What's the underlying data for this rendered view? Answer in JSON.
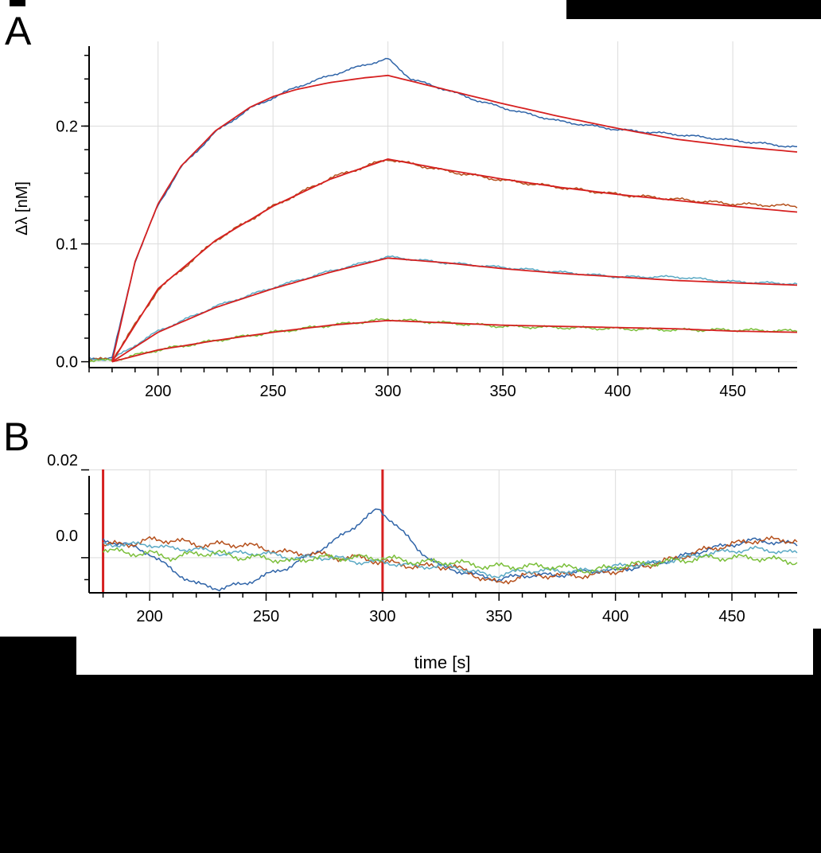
{
  "panels": {
    "a_letter": "A",
    "b_letter": "B"
  },
  "colors": {
    "fit": "#d62020",
    "dark_blue": "#2f64a8",
    "orange_brown": "#b5501c",
    "light_blue": "#5aa9c4",
    "green": "#7bbf3a",
    "grid": "#dcdcdc",
    "axis": "#000000"
  },
  "chart_data": [
    {
      "type": "line",
      "panel": "A",
      "xlabel": "",
      "ylabel": "Δλ [nM]",
      "xlim": [
        170,
        478
      ],
      "ylim": [
        -0.005,
        0.28
      ],
      "xticks": [
        200,
        250,
        300,
        350,
        400,
        450
      ],
      "xtick_labels": [
        "200",
        "250",
        "300",
        "350",
        "400",
        "450"
      ],
      "yticks": [
        0.0,
        0.1,
        0.2
      ],
      "ytick_labels": [
        "0.0",
        "0.1",
        "0.2"
      ],
      "grid": true,
      "association_start": 180,
      "dissociation_start": 300,
      "series": [
        {
          "color_key": "dark_blue",
          "kind": "data",
          "x": [
            170,
            180,
            190,
            200,
            210,
            225,
            240,
            250,
            260,
            275,
            290,
            300,
            310,
            325,
            340,
            355,
            375,
            400,
            425,
            450,
            478
          ],
          "y": [
            0.003,
            0.003,
            0.085,
            0.133,
            0.165,
            0.195,
            0.215,
            0.224,
            0.233,
            0.243,
            0.252,
            0.257,
            0.24,
            0.231,
            0.221,
            0.213,
            0.204,
            0.197,
            0.193,
            0.188,
            0.182
          ]
        },
        {
          "color_key": "orange_brown",
          "kind": "data",
          "x": [
            170,
            180,
            200,
            225,
            250,
            275,
            300,
            325,
            350,
            375,
            400,
            425,
            450,
            478
          ],
          "y": [
            0.002,
            0.002,
            0.061,
            0.103,
            0.132,
            0.156,
            0.172,
            0.162,
            0.154,
            0.148,
            0.142,
            0.138,
            0.134,
            0.132
          ]
        },
        {
          "color_key": "light_blue",
          "kind": "data",
          "x": [
            170,
            180,
            200,
            225,
            250,
            275,
            300,
            325,
            350,
            375,
            400,
            425,
            450,
            478
          ],
          "y": [
            0.002,
            0.002,
            0.026,
            0.047,
            0.063,
            0.077,
            0.089,
            0.084,
            0.08,
            0.076,
            0.072,
            0.072,
            0.068,
            0.066
          ]
        },
        {
          "color_key": "green",
          "kind": "data",
          "x": [
            170,
            180,
            200,
            225,
            250,
            275,
            300,
            325,
            350,
            375,
            400,
            425,
            450,
            478
          ],
          "y": [
            0.001,
            0.001,
            0.01,
            0.018,
            0.025,
            0.031,
            0.036,
            0.033,
            0.03,
            0.029,
            0.028,
            0.027,
            0.027,
            0.026
          ]
        },
        {
          "color_key": "fit",
          "kind": "fit",
          "x": [
            180,
            190,
            200,
            210,
            225,
            240,
            250,
            260,
            275,
            290,
            300,
            325,
            350,
            375,
            400,
            425,
            450,
            478
          ],
          "y": [
            0.0,
            0.085,
            0.134,
            0.166,
            0.196,
            0.216,
            0.225,
            0.231,
            0.237,
            0.241,
            0.243,
            0.231,
            0.219,
            0.208,
            0.198,
            0.189,
            0.183,
            0.178
          ]
        },
        {
          "color_key": "fit",
          "kind": "fit",
          "x": [
            180,
            200,
            225,
            250,
            275,
            300,
            325,
            350,
            375,
            400,
            425,
            450,
            478
          ],
          "y": [
            0.0,
            0.062,
            0.103,
            0.132,
            0.155,
            0.172,
            0.163,
            0.155,
            0.148,
            0.142,
            0.137,
            0.132,
            0.127
          ]
        },
        {
          "color_key": "fit",
          "kind": "fit",
          "x": [
            180,
            200,
            225,
            250,
            275,
            300,
            325,
            350,
            375,
            400,
            425,
            450,
            478
          ],
          "y": [
            0.0,
            0.025,
            0.046,
            0.062,
            0.076,
            0.088,
            0.084,
            0.079,
            0.075,
            0.072,
            0.069,
            0.067,
            0.065
          ]
        },
        {
          "color_key": "fit",
          "kind": "fit",
          "x": [
            180,
            200,
            225,
            250,
            275,
            300,
            325,
            350,
            375,
            400,
            425,
            450,
            478
          ],
          "y": [
            0.0,
            0.01,
            0.018,
            0.025,
            0.031,
            0.035,
            0.033,
            0.031,
            0.03,
            0.029,
            0.028,
            0.026,
            0.025
          ]
        }
      ]
    },
    {
      "type": "line",
      "panel": "B",
      "xlabel": "time [s]",
      "ylabel": "",
      "xlim": [
        174,
        478
      ],
      "ylim": [
        -0.008,
        0.021
      ],
      "xticks": [
        200,
        250,
        300,
        350,
        400,
        450
      ],
      "xtick_labels": [
        "200",
        "250",
        "300",
        "350",
        "400",
        "450"
      ],
      "yticks": [
        0.02,
        0.0
      ],
      "ytick_labels": [
        "0.02",
        "0.0"
      ],
      "grid": true,
      "markers_x": [
        180,
        300
      ],
      "series": [
        {
          "color_key": "dark_blue",
          "x": [
            180,
            190,
            200,
            210,
            220,
            230,
            240,
            250,
            260,
            270,
            280,
            290,
            298,
            305,
            315,
            325,
            340,
            350,
            360,
            375,
            390,
            400,
            420,
            440,
            460,
            478
          ],
          "y": [
            0.004,
            0.003,
            0.001,
            -0.003,
            -0.006,
            -0.007,
            -0.006,
            -0.004,
            -0.002,
            0.001,
            0.004,
            0.008,
            0.011,
            0.008,
            0.002,
            -0.002,
            -0.004,
            -0.005,
            -0.004,
            -0.004,
            -0.003,
            -0.003,
            -0.001,
            0.002,
            0.004,
            0.003
          ]
        },
        {
          "color_key": "orange_brown",
          "x": [
            180,
            190,
            200,
            210,
            220,
            230,
            240,
            250,
            260,
            270,
            280,
            290,
            300,
            315,
            330,
            345,
            350,
            360,
            375,
            390,
            400,
            420,
            440,
            460,
            478
          ],
          "y": [
            0.003,
            0.003,
            0.004,
            0.004,
            0.003,
            0.003,
            0.003,
            0.002,
            0.001,
            0.001,
            0.0,
            0.0,
            -0.001,
            -0.002,
            -0.002,
            -0.005,
            -0.006,
            -0.004,
            -0.004,
            -0.004,
            -0.003,
            -0.001,
            0.002,
            0.004,
            0.004
          ]
        },
        {
          "color_key": "light_blue",
          "x": [
            180,
            190,
            200,
            210,
            220,
            230,
            240,
            250,
            260,
            270,
            280,
            290,
            300,
            315,
            330,
            345,
            350,
            360,
            375,
            390,
            400,
            420,
            440,
            460,
            478
          ],
          "y": [
            0.003,
            0.003,
            0.003,
            0.002,
            0.002,
            0.001,
            0.001,
            0.001,
            0.0,
            0.0,
            0.0,
            -0.001,
            -0.001,
            -0.002,
            -0.002,
            -0.004,
            -0.004,
            -0.003,
            -0.003,
            -0.003,
            -0.002,
            -0.001,
            0.001,
            0.002,
            0.001
          ]
        },
        {
          "color_key": "green",
          "x": [
            180,
            190,
            200,
            210,
            220,
            230,
            240,
            250,
            260,
            270,
            280,
            290,
            300,
            315,
            330,
            345,
            350,
            360,
            375,
            390,
            400,
            420,
            440,
            460,
            478
          ],
          "y": [
            0.002,
            0.001,
            0.001,
            0.0,
            0.001,
            0.001,
            0.0,
            0.0,
            -0.001,
            0.0,
            0.0,
            0.0,
            0.0,
            -0.001,
            -0.001,
            -0.002,
            -0.002,
            -0.002,
            -0.002,
            -0.003,
            -0.002,
            -0.001,
            0.0,
            0.0,
            -0.001
          ]
        }
      ]
    }
  ]
}
